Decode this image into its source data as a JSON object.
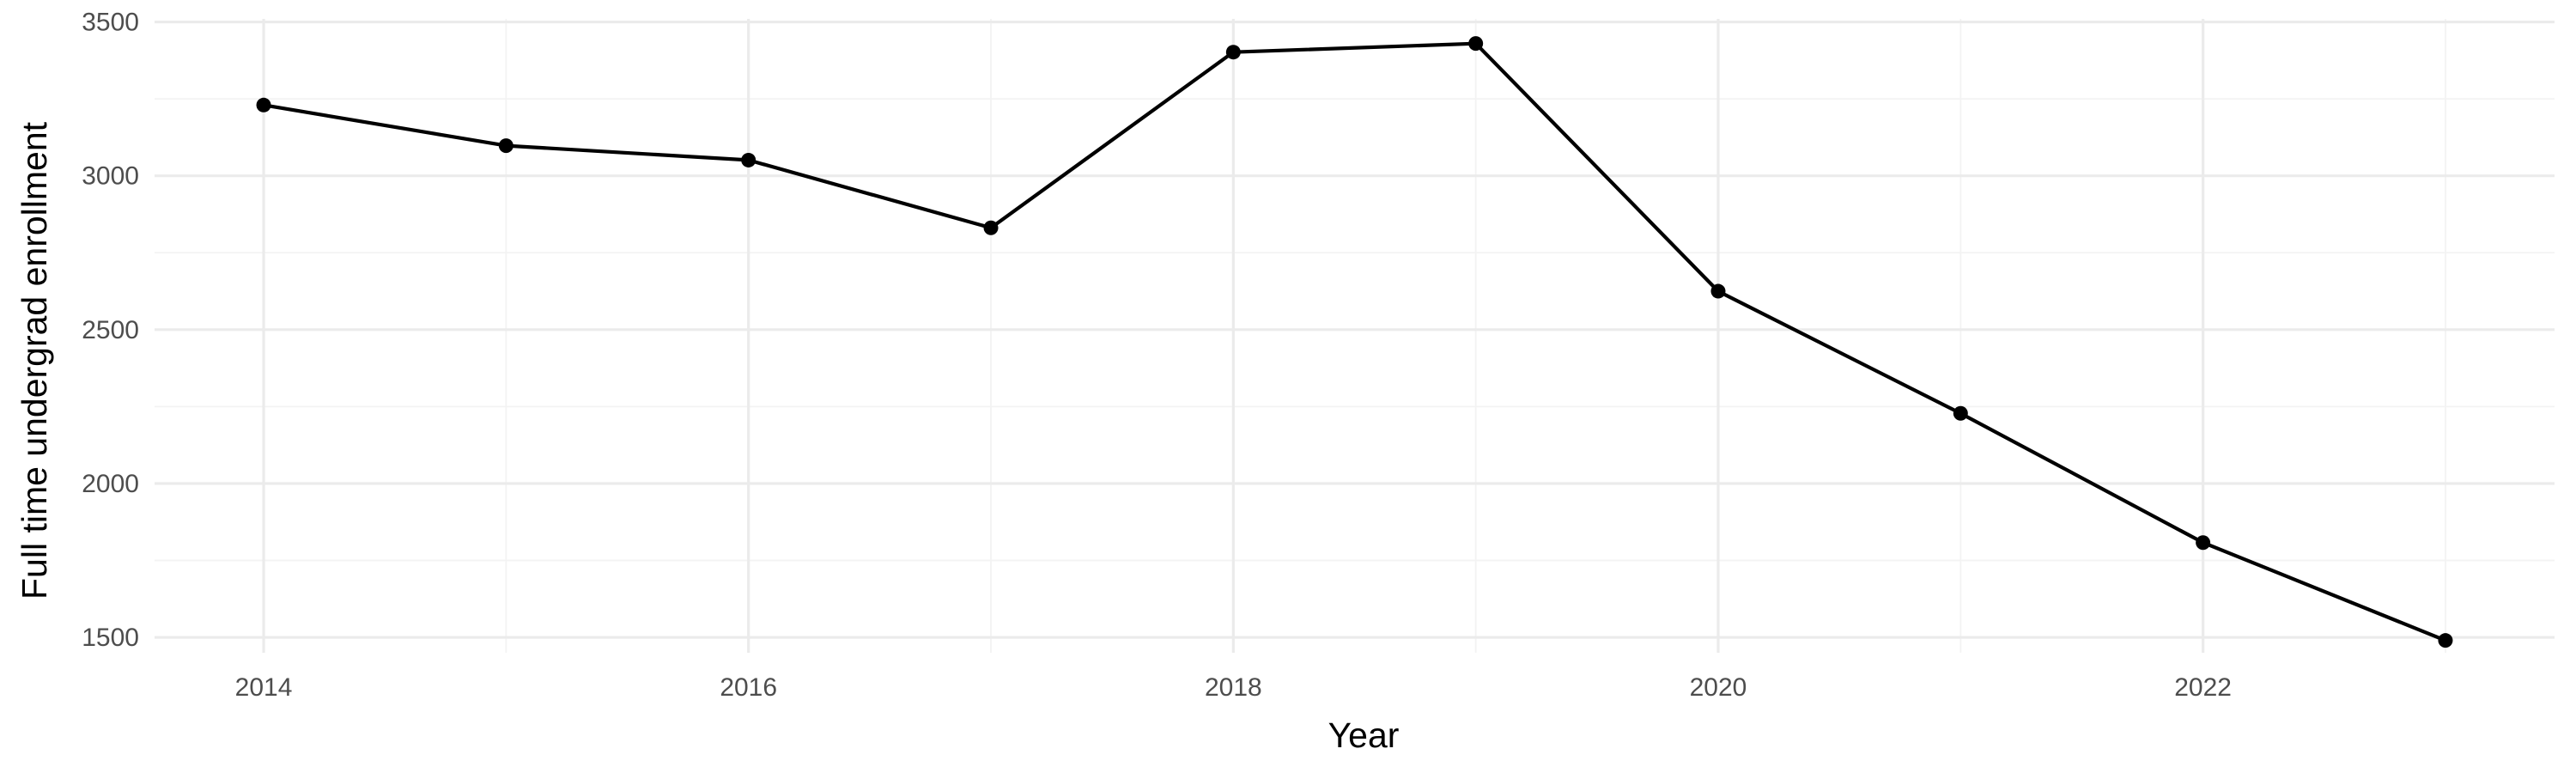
{
  "chart_data": {
    "type": "line",
    "title": "",
    "xlabel": "Year",
    "ylabel": "Full time undergrad enrollment",
    "xlim": [
      2013.55,
      2023.45
    ],
    "ylim": [
      1450,
      3510
    ],
    "x_ticks_major": [
      2014,
      2016,
      2018,
      2020,
      2022
    ],
    "x_ticks_minor": [
      2015,
      2017,
      2019,
      2021,
      2023
    ],
    "y_ticks_major": [
      1500,
      2000,
      2500,
      3000,
      3500
    ],
    "y_ticks_minor": [
      1750,
      2250,
      2750,
      3250
    ],
    "x_tick_labels": [
      "2014",
      "2016",
      "2018",
      "2020",
      "2022"
    ],
    "y_tick_labels": [
      "1500",
      "2000",
      "2500",
      "3000",
      "3500"
    ],
    "grid": true,
    "legend": "none",
    "series": [
      {
        "color": "#000000",
        "x": [
          2014,
          2015,
          2016,
          2017,
          2018,
          2019,
          2020,
          2021,
          2022,
          2023
        ],
        "values": [
          3230,
          3098,
          3051,
          2831,
          3402,
          3430,
          2625,
          2228,
          1808,
          1490
        ]
      }
    ]
  }
}
